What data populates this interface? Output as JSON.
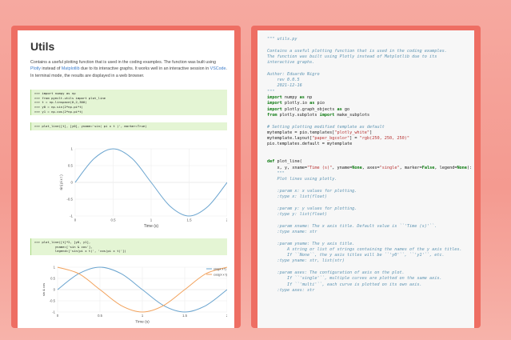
{
  "left_doc": {
    "title": "Utils",
    "desc_1": "Contains a useful plotting function that is used in the coding examples. The function was built",
    "desc_2a": "using ",
    "desc_2_link1": "Plotly",
    "desc_2b": " instead of ",
    "desc_2_link2": "Matplotlib",
    "desc_2c": " due to its interactive graphs. It works well in an interactive",
    "desc_3a": "session in ",
    "desc_3_link": "VSCode",
    "desc_3b": ". In terminal mode, the results are displayed in a web browser.",
    "code1": [
      ">>> import numpy as np",
      ">>> from pyeclt.utils import plot_line",
      ">>> t = np.linspace(0,2,300)",
      ">>> y0 = np.sin(2*np.pi*t)",
      ">>> y1 = np.cos(2*np.pi*t)"
    ],
    "code2": [
      ">>> plot_line([t], [y0], yname='sin( pi x t )', marker=True)"
    ],
    "code3": [
      ">>> plot_line([t]*2, [y0, y1],",
      "           yname=['sin & cos'],",
      "           legend=['sin(pi x t)', 'cos(pi x t)'])"
    ]
  },
  "chart_data": [
    {
      "type": "line",
      "title": "",
      "xlabel": "Time (s)",
      "ylabel": "sin( pi x t )",
      "xlim": [
        0,
        2
      ],
      "ylim": [
        -1,
        1
      ],
      "x_ticks": [
        "0",
        "0.5",
        "1",
        "1.5",
        "2"
      ],
      "y_ticks": [
        "1",
        "0.5",
        "0",
        "-0.5",
        "-1"
      ],
      "series": [
        {
          "color": "#6aa4cf",
          "x": [
            0,
            0.25,
            0.5,
            0.75,
            1,
            1.25,
            1.5,
            1.75,
            2
          ],
          "y": [
            0,
            0.71,
            1,
            0.71,
            0,
            -0.71,
            -1,
            -0.71,
            0
          ]
        }
      ]
    },
    {
      "type": "line",
      "title": "",
      "xlabel": "Time (s)",
      "ylabel": "sin & cos",
      "xlim": [
        0,
        2
      ],
      "ylim": [
        -1,
        1
      ],
      "x_ticks": [
        "0",
        "0.5",
        "1",
        "1.5",
        "2"
      ],
      "y_ticks": [
        "1",
        "0.5",
        "0",
        "-0.5",
        "-1"
      ],
      "legend_position": "top-right",
      "series": [
        {
          "name": "sin(pi x t)",
          "color": "#6aa4cf",
          "x": [
            0,
            0.25,
            0.5,
            0.75,
            1,
            1.25,
            1.5,
            1.75,
            2
          ],
          "y": [
            0,
            0.71,
            1,
            0.71,
            0,
            -0.71,
            -1,
            -0.71,
            0
          ]
        },
        {
          "name": "cos(pi x t)",
          "color": "#f2a25c",
          "x": [
            0,
            0.25,
            0.5,
            0.75,
            1,
            1.25,
            1.5,
            1.75,
            2
          ],
          "y": [
            1,
            0.71,
            0,
            -0.71,
            -1,
            -0.71,
            0,
            0.71,
            1
          ]
        }
      ]
    }
  ],
  "right_code": {
    "lines": [
      [
        [
          "\"\"\" utils.py",
          "cm"
        ]
      ],
      [
        [
          "",
          "tx"
        ]
      ],
      [
        [
          "Contains a useful plotting function that is used in the coding examples.",
          "cm"
        ]
      ],
      [
        [
          "The function was built using Plotly instead of Matplotlib due to its",
          "cm"
        ]
      ],
      [
        [
          "interactive graphs.",
          "cm"
        ]
      ],
      [
        [
          "",
          "tx"
        ]
      ],
      [
        [
          "Author: Eduardo Nigro",
          "cm"
        ]
      ],
      [
        [
          "    rev 0.0.5",
          "cm"
        ]
      ],
      [
        [
          "    2021-12-16",
          "cm"
        ]
      ],
      [
        [
          "\"\"\"",
          "cm"
        ]
      ],
      [
        [
          "import",
          "kw"
        ],
        [
          " numpy ",
          "tx"
        ],
        [
          "as",
          "kw"
        ],
        [
          " np",
          "tx"
        ]
      ],
      [
        [
          "import",
          "kw"
        ],
        [
          " plotly.io ",
          "tx"
        ],
        [
          "as",
          "kw"
        ],
        [
          " pio",
          "tx"
        ]
      ],
      [
        [
          "import",
          "kw"
        ],
        [
          " plotly.graph_objects ",
          "tx"
        ],
        [
          "as",
          "kw"
        ],
        [
          " go",
          "tx"
        ]
      ],
      [
        [
          "from",
          "kw"
        ],
        [
          " plotly.subplots ",
          "tx"
        ],
        [
          "import",
          "kw"
        ],
        [
          " make_subplots",
          "tx"
        ]
      ],
      [
        [
          "",
          "tx"
        ]
      ],
      [
        [
          "# Setting plotting modified template as default",
          "cm"
        ]
      ],
      [
        [
          "mytemplate = pio.templates[",
          "tx"
        ],
        [
          "\"plotly_white\"",
          "st"
        ],
        [
          "]",
          "tx"
        ]
      ],
      [
        [
          "mytemplate.layout[",
          "tx"
        ],
        [
          "\"paper_bgcolor\"",
          "st"
        ],
        [
          "] = ",
          "tx"
        ],
        [
          "\"rgb(250, 250, 250)\"",
          "st"
        ]
      ],
      [
        [
          "pio.templates.default = mytemplate",
          "tx"
        ]
      ],
      [
        [
          "",
          "tx"
        ]
      ],
      [
        [
          "",
          "tx"
        ]
      ],
      [
        [
          "def",
          "kw"
        ],
        [
          " plot_line(",
          "tx"
        ]
      ],
      [
        [
          "    x, y, xname=",
          "tx"
        ],
        [
          "\"Time (s)\"",
          "st"
        ],
        [
          ", yname=",
          "tx"
        ],
        [
          "None",
          "kw"
        ],
        [
          ", axes=",
          "tx"
        ],
        [
          "\"single\"",
          "st"
        ],
        [
          ", marker=",
          "tx"
        ],
        [
          "False",
          "kw"
        ],
        [
          ", legend=",
          "tx"
        ],
        [
          "None",
          "kw"
        ],
        [
          "):",
          "tx"
        ]
      ],
      [
        [
          "    \"\"\"",
          "cm"
        ]
      ],
      [
        [
          "    Plot lines using plotly.",
          "cm"
        ]
      ],
      [
        [
          "",
          "tx"
        ]
      ],
      [
        [
          "    :param x: x values for plotting.",
          "cm"
        ]
      ],
      [
        [
          "    :type x: list(float)",
          "cm"
        ]
      ],
      [
        [
          "",
          "tx"
        ]
      ],
      [
        [
          "    :param y: y values for plotting.",
          "cm"
        ]
      ],
      [
        [
          "    :type y: list(float)",
          "cm"
        ]
      ],
      [
        [
          "",
          "tx"
        ]
      ],
      [
        [
          "    :param xname: The x axis title. Default value is ``'Time (s)'``.",
          "cm"
        ]
      ],
      [
        [
          "    :type xname: str",
          "cm"
        ]
      ],
      [
        [
          "",
          "tx"
        ]
      ],
      [
        [
          "    :param yname: The y axis title.",
          "cm"
        ]
      ],
      [
        [
          "        A string or list of strings containing the names of the y axis titles.",
          "cm"
        ]
      ],
      [
        [
          "        If ``None``, the y axis titles will be ``'y0'``, ``'y1'``, etc.",
          "cm"
        ]
      ],
      [
        [
          "    :type yname: str, list(str)",
          "cm"
        ]
      ],
      [
        [
          "",
          "tx"
        ]
      ],
      [
        [
          "    :param axes: The configuration of axis on the plot.",
          "cm"
        ]
      ],
      [
        [
          "        If ``'single'``, multiple curves are plotted on the same axis.",
          "cm"
        ]
      ],
      [
        [
          "        If ``'multi'``, each curve is plotted on its own axis.",
          "cm"
        ]
      ],
      [
        [
          "    :type axes: str",
          "cm"
        ]
      ]
    ]
  }
}
